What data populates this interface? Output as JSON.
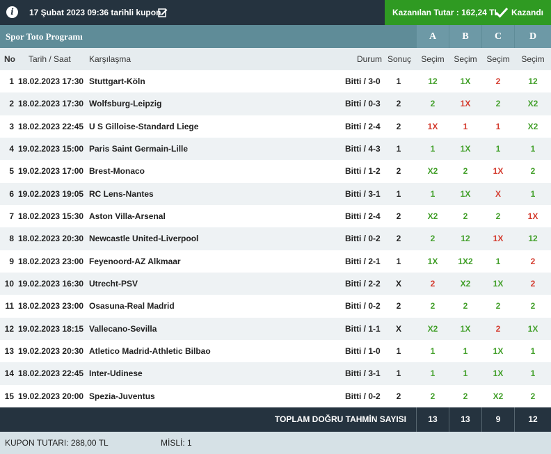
{
  "coupon": {
    "title": "17 Şubat 2023 09:36 tarihli kupon",
    "win_label": "Kazanılan Tutar : 162,24 TL",
    "win_status": "Kazandı"
  },
  "program": {
    "title": "Spor Toto Programı",
    "columns": [
      "A",
      "B",
      "C",
      "D"
    ]
  },
  "table": {
    "headers": {
      "no": "No",
      "datetime": "Tarih / Saat",
      "match": "Karşılaşma",
      "status": "Durum",
      "result": "Sonuç",
      "selection": "Seçim"
    },
    "rows": [
      {
        "no": "1",
        "datetime": "18.02.2023 17:30",
        "match": "Stuttgart-Köln",
        "status": "Bitti / 3-0",
        "result": "1",
        "picks": [
          "12",
          "1X",
          "2",
          "12"
        ]
      },
      {
        "no": "2",
        "datetime": "18.02.2023 17:30",
        "match": "Wolfsburg-Leipzig",
        "status": "Bitti / 0-3",
        "result": "2",
        "picks": [
          "2",
          "1X",
          "2",
          "X2"
        ]
      },
      {
        "no": "3",
        "datetime": "18.02.2023 22:45",
        "match": "U S Gilloise-Standard Liege",
        "status": "Bitti / 2-4",
        "result": "2",
        "picks": [
          "1X",
          "1",
          "1",
          "X2"
        ]
      },
      {
        "no": "4",
        "datetime": "19.02.2023 15:00",
        "match": "Paris Saint Germain-Lille",
        "status": "Bitti / 4-3",
        "result": "1",
        "picks": [
          "1",
          "1X",
          "1",
          "1"
        ]
      },
      {
        "no": "5",
        "datetime": "19.02.2023 17:00",
        "match": "Brest-Monaco",
        "status": "Bitti / 1-2",
        "result": "2",
        "picks": [
          "X2",
          "2",
          "1X",
          "2"
        ]
      },
      {
        "no": "6",
        "datetime": "19.02.2023 19:05",
        "match": "RC Lens-Nantes",
        "status": "Bitti / 3-1",
        "result": "1",
        "picks": [
          "1",
          "1X",
          "X",
          "1"
        ]
      },
      {
        "no": "7",
        "datetime": "18.02.2023 15:30",
        "match": "Aston Villa-Arsenal",
        "status": "Bitti / 2-4",
        "result": "2",
        "picks": [
          "X2",
          "2",
          "2",
          "1X"
        ]
      },
      {
        "no": "8",
        "datetime": "18.02.2023 20:30",
        "match": "Newcastle United-Liverpool",
        "status": "Bitti / 0-2",
        "result": "2",
        "picks": [
          "2",
          "12",
          "1X",
          "12"
        ]
      },
      {
        "no": "9",
        "datetime": "18.02.2023 23:00",
        "match": "Feyenoord-AZ Alkmaar",
        "status": "Bitti / 2-1",
        "result": "1",
        "picks": [
          "1X",
          "1X2",
          "1",
          "2"
        ]
      },
      {
        "no": "10",
        "datetime": "19.02.2023 16:30",
        "match": "Utrecht-PSV",
        "status": "Bitti / 2-2",
        "result": "X",
        "picks": [
          "2",
          "X2",
          "1X",
          "2"
        ]
      },
      {
        "no": "11",
        "datetime": "18.02.2023 23:00",
        "match": "Osasuna-Real Madrid",
        "status": "Bitti / 0-2",
        "result": "2",
        "picks": [
          "2",
          "2",
          "2",
          "2"
        ]
      },
      {
        "no": "12",
        "datetime": "19.02.2023 18:15",
        "match": "Vallecano-Sevilla",
        "status": "Bitti / 1-1",
        "result": "X",
        "picks": [
          "X2",
          "1X",
          "2",
          "1X"
        ]
      },
      {
        "no": "13",
        "datetime": "19.02.2023 20:30",
        "match": "Atletico Madrid-Athletic Bilbao",
        "status": "Bitti / 1-0",
        "result": "1",
        "picks": [
          "1",
          "1",
          "1X",
          "1"
        ]
      },
      {
        "no": "14",
        "datetime": "18.02.2023 22:45",
        "match": "Inter-Udinese",
        "status": "Bitti / 3-1",
        "result": "1",
        "picks": [
          "1",
          "1",
          "1X",
          "1"
        ]
      },
      {
        "no": "15",
        "datetime": "19.02.2023 20:00",
        "match": "Spezia-Juventus",
        "status": "Bitti / 0-2",
        "result": "2",
        "picks": [
          "2",
          "2",
          "X2",
          "2"
        ]
      }
    ],
    "pick_correct": [
      [
        true,
        true,
        false,
        true
      ],
      [
        true,
        false,
        true,
        true
      ],
      [
        false,
        false,
        false,
        true
      ],
      [
        true,
        true,
        true,
        true
      ],
      [
        true,
        true,
        false,
        true
      ],
      [
        true,
        true,
        false,
        true
      ],
      [
        true,
        true,
        true,
        false
      ],
      [
        true,
        true,
        false,
        true
      ],
      [
        true,
        true,
        true,
        false
      ],
      [
        false,
        true,
        true,
        false
      ],
      [
        true,
        true,
        true,
        true
      ],
      [
        true,
        true,
        false,
        true
      ],
      [
        true,
        true,
        true,
        true
      ],
      [
        true,
        true,
        true,
        true
      ],
      [
        true,
        true,
        true,
        true
      ]
    ]
  },
  "totals": {
    "label": "TOPLAM DOĞRU TAHMİN SAYISI",
    "values": [
      "13",
      "13",
      "9",
      "12"
    ]
  },
  "footer": {
    "coupon_amount": "KUPON TUTARI: 288,00 TL",
    "multiplier": "MİSLİ: 1"
  },
  "colors": {
    "correct": "#43a02b",
    "wrong": "#d43b2e",
    "header_dark": "#25333f",
    "win_green": "#2f9a22",
    "program_bar": "#5f8c98"
  }
}
